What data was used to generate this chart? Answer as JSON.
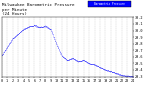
{
  "title": "Milwaukee Barometric Pressure\nper Minute\n(24 Hours)",
  "bg_color": "#ffffff",
  "plot_bg_color": "#ffffff",
  "line_color": "#0000ff",
  "grid_color": "#aaaaaa",
  "tick_color": "#000000",
  "ylim": [
    29.3,
    30.2
  ],
  "xlim": [
    0,
    1440
  ],
  "yticks": [
    29.3,
    29.4,
    29.5,
    29.6,
    29.7,
    29.8,
    29.9,
    30.0,
    30.1,
    30.2
  ],
  "ytick_labels": [
    "29.3",
    "29.4",
    "29.5",
    "29.6",
    "29.7",
    "29.8",
    "29.9",
    "30.0",
    "30.1",
    "30.2"
  ],
  "xtick_positions": [
    0,
    60,
    120,
    180,
    240,
    300,
    360,
    420,
    480,
    540,
    600,
    660,
    720,
    780,
    840,
    900,
    960,
    1020,
    1080,
    1140,
    1200,
    1260,
    1320,
    1380,
    1440
  ],
  "xtick_labels": [
    "0",
    "1",
    "2",
    "3",
    "4",
    "5",
    "6",
    "7",
    "8",
    "9",
    "10",
    "11",
    "12",
    "13",
    "14",
    "15",
    "16",
    "17",
    "18",
    "19",
    "20",
    "21",
    "22",
    "23",
    "24"
  ],
  "legend_label": "Barometric Pressure",
  "num_points": 1440,
  "dot_size": 0.5,
  "title_fontsize": 3.0,
  "tick_fontsize": 2.5
}
